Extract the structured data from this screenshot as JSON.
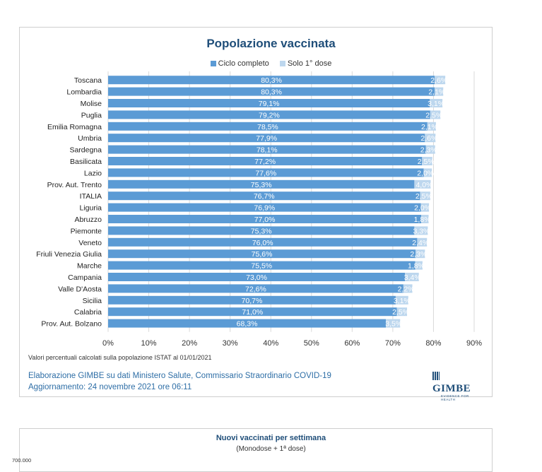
{
  "chart_data": [
    {
      "type": "bar",
      "stacked": true,
      "orientation": "horizontal",
      "title": "Popolazione vaccinata",
      "categories": [
        "Toscana",
        "Lombardia",
        "Molise",
        "Puglia",
        "Emilia Romagna",
        "Umbria",
        "Sardegna",
        "Basilicata",
        "Lazio",
        "Prov. Aut. Trento",
        "ITALIA",
        "Liguria",
        "Abruzzo",
        "Piemonte",
        "Veneto",
        "Friuli Venezia Giulia",
        "Marche",
        "Campania",
        "Valle D'Aosta",
        "Sicilia",
        "Calabria",
        "Prov. Aut. Bolzano"
      ],
      "series": [
        {
          "name": "Ciclo completo",
          "color": "#5b9bd5",
          "values": [
            80.3,
            80.3,
            79.1,
            79.2,
            78.5,
            77.9,
            78.1,
            77.2,
            77.6,
            75.3,
            76.7,
            76.9,
            77.0,
            75.3,
            76.0,
            75.6,
            75.5,
            73.0,
            72.6,
            70.7,
            71.0,
            68.3
          ],
          "labels": [
            "80,3%",
            "80,3%",
            "79,1%",
            "79,2%",
            "78,5%",
            "77,9%",
            "78,1%",
            "77,2%",
            "77,6%",
            "75,3%",
            "76,7%",
            "76,9%",
            "77,0%",
            "75,3%",
            "76,0%",
            "75,6%",
            "75,5%",
            "73,0%",
            "72,6%",
            "70,7%",
            "71,0%",
            "68,3%"
          ]
        },
        {
          "name": "Solo 1° dose",
          "color": "#bdd7ee",
          "values": [
            2.6,
            2.1,
            3.1,
            2.5,
            2.1,
            2.6,
            2.3,
            2.5,
            2.0,
            4.0,
            2.5,
            2.0,
            1.8,
            3.3,
            2.4,
            2.3,
            1.8,
            3.4,
            2.2,
            3.1,
            2.5,
            3.5
          ],
          "labels": [
            "2,6%",
            "2,1%",
            "3,1%",
            "2,5%",
            "2,1%",
            "2,6%",
            "2,3%",
            "2,5%",
            "2,0%",
            "4,0%",
            "2,5%",
            "2,0%",
            "1,8%",
            "3,3%",
            "2,4%",
            "2,3%",
            "1,8%",
            "3,4%",
            "2,2%",
            "3,1%",
            "2,5%",
            "3,5%"
          ]
        }
      ],
      "xlim": [
        0,
        90
      ],
      "xticks": [
        "0%",
        "10%",
        "20%",
        "30%",
        "40%",
        "50%",
        "60%",
        "70%",
        "80%",
        "90%"
      ],
      "grid": true,
      "legend": "top-center"
    },
    {
      "type": "bar",
      "title": "Nuovi vaccinati per settimana",
      "subtitle": "(Monodose + 1ª dose)",
      "yticks": [
        "700.000"
      ]
    }
  ],
  "footnote": "Valori percentuali calcolati sulla popolazione ISTAT al 01/01/2021",
  "credit_line1": "Elaborazione GIMBE su dati Ministero Salute, Commissario Straordinario COVID-19",
  "credit_line2": "Aggiornamento: 24 novembre 2021 ore 06:11",
  "logo_text": "GIMBE",
  "logo_sub": "EVIDENCE FOR HEALTH"
}
